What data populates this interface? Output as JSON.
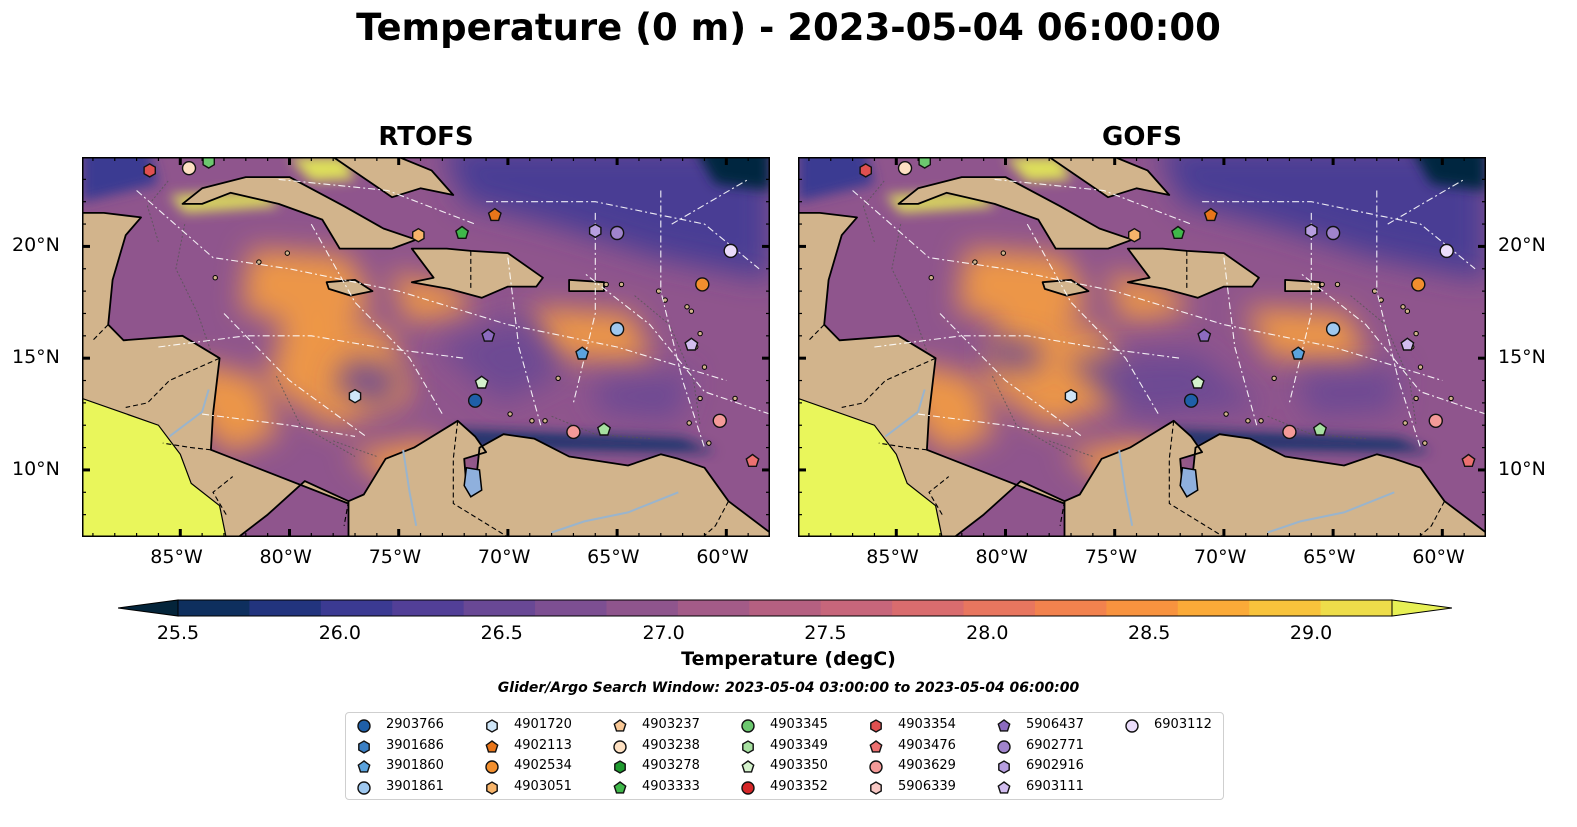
{
  "title": "Temperature (0 m) - 2023-05-04 06:00:00",
  "panels": [
    {
      "title": "RTOFS"
    },
    {
      "title": "GOFS"
    }
  ],
  "lon_ticks": [
    "85°W",
    "80°W",
    "75°W",
    "70°W",
    "65°W",
    "60°W"
  ],
  "lat_ticks": [
    "20°N",
    "15°N",
    "10°N"
  ],
  "colorbar": {
    "label": "Temperature (degC)",
    "ticks": [
      "25.5",
      "26.0",
      "26.5",
      "27.0",
      "27.5",
      "28.0",
      "28.5",
      "29.0"
    ],
    "colors": [
      "#04243a",
      "#0e2f5e",
      "#22347e",
      "#3b3a92",
      "#523f97",
      "#694895",
      "#7d4f92",
      "#8f558d",
      "#a35b88",
      "#b56081",
      "#c7667b",
      "#d96c6e",
      "#e8765f",
      "#f2824e",
      "#f8933f",
      "#fbaa38",
      "#f8c33c",
      "#eedd4a",
      "#e7f055"
    ]
  },
  "search_window": "Glider/Argo Search Window: 2023-05-04 03:00:00 to 2023-05-04 06:00:00",
  "legend": [
    {
      "id": "2903766",
      "marker": "circle",
      "color": "#1f5fa8"
    },
    {
      "id": "3901686",
      "marker": "hexagon",
      "color": "#3a7fc4"
    },
    {
      "id": "3901860",
      "marker": "pentagon",
      "color": "#5ba3de"
    },
    {
      "id": "3901861",
      "marker": "circle",
      "color": "#9fc8ef"
    },
    {
      "id": "4901720",
      "marker": "hexagon",
      "color": "#cfe6f8"
    },
    {
      "id": "4902113",
      "marker": "pentagon",
      "color": "#e8751a"
    },
    {
      "id": "4902534",
      "marker": "circle",
      "color": "#f28f2e"
    },
    {
      "id": "4903051",
      "marker": "hexagon",
      "color": "#f7b46a"
    },
    {
      "id": "4903237",
      "marker": "pentagon",
      "color": "#f9c896"
    },
    {
      "id": "4903238",
      "marker": "circle",
      "color": "#fde0c2"
    },
    {
      "id": "4903278",
      "marker": "hexagon",
      "color": "#1f9a2f"
    },
    {
      "id": "4903333",
      "marker": "pentagon",
      "color": "#3fb84a"
    },
    {
      "id": "4903345",
      "marker": "circle",
      "color": "#6cc86f"
    },
    {
      "id": "4903349",
      "marker": "hexagon",
      "color": "#a6e0a0"
    },
    {
      "id": "4903350",
      "marker": "pentagon",
      "color": "#d4f2cc"
    },
    {
      "id": "4903352",
      "marker": "circle",
      "color": "#d62728"
    },
    {
      "id": "4903354",
      "marker": "hexagon",
      "color": "#e05050"
    },
    {
      "id": "4903476",
      "marker": "pentagon",
      "color": "#ec7070"
    },
    {
      "id": "4903629",
      "marker": "circle",
      "color": "#f49a98"
    },
    {
      "id": "5906339",
      "marker": "hexagon",
      "color": "#f8c8c4"
    },
    {
      "id": "5906437",
      "marker": "pentagon",
      "color": "#8c6bbf"
    },
    {
      "id": "6902771",
      "marker": "circle",
      "color": "#a084cc"
    },
    {
      "id": "6902916",
      "marker": "hexagon",
      "color": "#b79ee0"
    },
    {
      "id": "6903111",
      "marker": "pentagon",
      "color": "#d2bdf0"
    },
    {
      "id": "6903112",
      "marker": "circle",
      "color": "#eadcfa"
    }
  ],
  "markers": [
    {
      "lon": -86.4,
      "lat": 23.4,
      "marker": "hexagon",
      "color": "#e05050"
    },
    {
      "lon": -84.6,
      "lat": 23.5,
      "marker": "circle",
      "color": "#fde0c2"
    },
    {
      "lon": -83.7,
      "lat": 23.8,
      "marker": "hexagon",
      "color": "#6cc86f"
    },
    {
      "lon": -74.1,
      "lat": 20.5,
      "marker": "hexagon",
      "color": "#f7b46a"
    },
    {
      "lon": -72.1,
      "lat": 20.6,
      "marker": "pentagon",
      "color": "#3fb84a"
    },
    {
      "lon": -70.6,
      "lat": 21.4,
      "marker": "pentagon",
      "color": "#e8751a"
    },
    {
      "lon": -66.0,
      "lat": 20.7,
      "marker": "hexagon",
      "color": "#b79ee0"
    },
    {
      "lon": -65.0,
      "lat": 20.6,
      "marker": "circle",
      "color": "#a084cc"
    },
    {
      "lon": -59.8,
      "lat": 19.8,
      "marker": "circle",
      "color": "#eadcfa"
    },
    {
      "lon": -61.1,
      "lat": 18.3,
      "marker": "circle",
      "color": "#f28f2e"
    },
    {
      "lon": -65.0,
      "lat": 16.3,
      "marker": "circle",
      "color": "#9fc8ef"
    },
    {
      "lon": -70.9,
      "lat": 16.0,
      "marker": "pentagon",
      "color": "#8c6bbf"
    },
    {
      "lon": -66.6,
      "lat": 15.2,
      "marker": "pentagon",
      "color": "#5ba3de"
    },
    {
      "lon": -61.6,
      "lat": 15.6,
      "marker": "pentagon",
      "color": "#d2bdf0"
    },
    {
      "lon": -71.2,
      "lat": 13.9,
      "marker": "pentagon",
      "color": "#d4f2cc"
    },
    {
      "lon": -77.0,
      "lat": 13.3,
      "marker": "hexagon",
      "color": "#cfe6f8"
    },
    {
      "lon": -71.5,
      "lat": 13.1,
      "marker": "circle",
      "color": "#1f5fa8"
    },
    {
      "lon": -67.0,
      "lat": 11.7,
      "marker": "circle",
      "color": "#f49a98"
    },
    {
      "lon": -65.6,
      "lat": 11.8,
      "marker": "pentagon",
      "color": "#a6e0a0"
    },
    {
      "lon": -60.3,
      "lat": 12.2,
      "marker": "circle",
      "color": "#f49a98"
    },
    {
      "lon": -58.8,
      "lat": 10.4,
      "marker": "pentagon",
      "color": "#ec7070"
    }
  ]
}
